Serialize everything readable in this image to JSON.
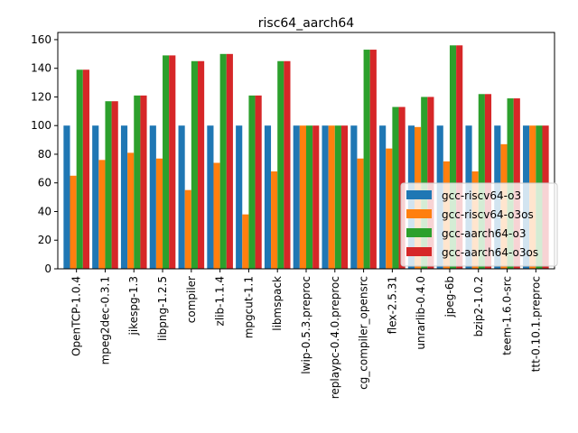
{
  "chart_data": {
    "type": "bar",
    "title": "risc64_aarch64",
    "xlabel": "",
    "ylabel": "",
    "ylim": [
      0,
      165
    ],
    "yticks": [
      0,
      20,
      40,
      60,
      80,
      100,
      120,
      140,
      160
    ],
    "legend_position": "lower-right",
    "grid": false,
    "categories": [
      "OpenTCP-1.0.4",
      "mpeg2dec-0.3.1",
      "jikespg-1.3",
      "libpng-1.2.5",
      "compiler",
      "zlib-1.1.4",
      "mpgcut-1.1",
      "libmspack",
      "lwip-0.5.3.preproc",
      "replaypc-0.4.0.preproc",
      "cg_compiler_opensrc",
      "flex-2.5.31",
      "unrarlib-0.4.0",
      "jpeg-6b",
      "bzip2-1.0.2",
      "teem-1.6.0-src",
      "ttt-0.10.1.preproc"
    ],
    "series": [
      {
        "name": "gcc-riscv64-o3",
        "color": "#1f77b4",
        "values": [
          100,
          100,
          100,
          100,
          100,
          100,
          100,
          100,
          100,
          100,
          100,
          100,
          100,
          100,
          100,
          100,
          100
        ]
      },
      {
        "name": "gcc-riscv64-o3os",
        "color": "#ff7f0e",
        "values": [
          65,
          76,
          81,
          77,
          55,
          74,
          38,
          68,
          100,
          100,
          77,
          84,
          99,
          75,
          68,
          87,
          100
        ]
      },
      {
        "name": "gcc-aarch64-o3",
        "color": "#2ca02c",
        "values": [
          139,
          117,
          121,
          149,
          145,
          150,
          121,
          145,
          100,
          100,
          153,
          113,
          120,
          156,
          122,
          119,
          100
        ]
      },
      {
        "name": "gcc-aarch64-o3os",
        "color": "#d62728",
        "values": [
          139,
          117,
          121,
          149,
          145,
          150,
          121,
          145,
          100,
          100,
          153,
          113,
          120,
          156,
          122,
          119,
          100
        ]
      }
    ]
  }
}
